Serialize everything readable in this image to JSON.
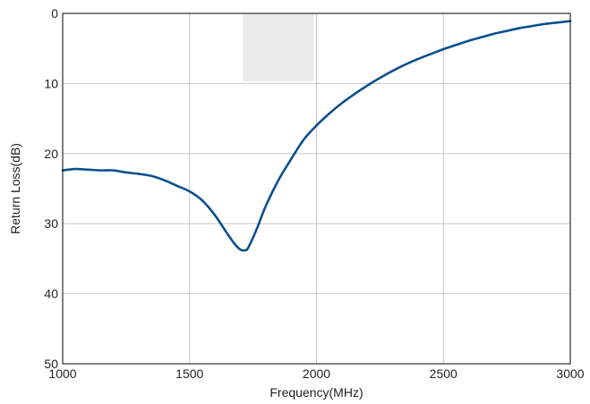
{
  "chart_data": {
    "type": "line",
    "title": "",
    "xlabel": "Frequency(MHz)",
    "ylabel": "Return Loss(dB)",
    "xlim": [
      1000,
      3000
    ],
    "ylim": [
      0,
      50
    ],
    "y_inverted": true,
    "grid": true,
    "x_ticks": [
      1000,
      1500,
      2000,
      2500,
      3000
    ],
    "y_ticks": [
      0,
      10,
      20,
      30,
      40,
      50
    ],
    "highlight_band": {
      "x": [
        1710,
        1990
      ],
      "y": [
        0,
        9.7
      ],
      "color": "#ececec"
    },
    "series": [
      {
        "color": "#0b4f8f",
        "x": [
          1000,
          1050,
          1100,
          1150,
          1200,
          1250,
          1300,
          1350,
          1400,
          1450,
          1500,
          1550,
          1600,
          1650,
          1680,
          1700,
          1720,
          1730,
          1750,
          1770,
          1800,
          1850,
          1900,
          1950,
          2000,
          2050,
          2100,
          2150,
          2200,
          2250,
          2300,
          2350,
          2400,
          2450,
          2500,
          2550,
          2600,
          2650,
          2700,
          2750,
          2800,
          2850,
          2900,
          2950,
          3000
        ],
        "y": [
          22.4,
          22.2,
          22.3,
          22.4,
          22.4,
          22.7,
          22.9,
          23.2,
          23.8,
          24.6,
          25.4,
          26.7,
          28.8,
          31.5,
          33.0,
          33.7,
          33.8,
          33.5,
          32.0,
          30.3,
          27.5,
          23.8,
          20.8,
          18.0,
          16.0,
          14.3,
          12.8,
          11.5,
          10.3,
          9.2,
          8.2,
          7.3,
          6.5,
          5.8,
          5.1,
          4.5,
          3.9,
          3.4,
          2.9,
          2.5,
          2.1,
          1.8,
          1.5,
          1.3,
          1.1
        ]
      }
    ]
  }
}
